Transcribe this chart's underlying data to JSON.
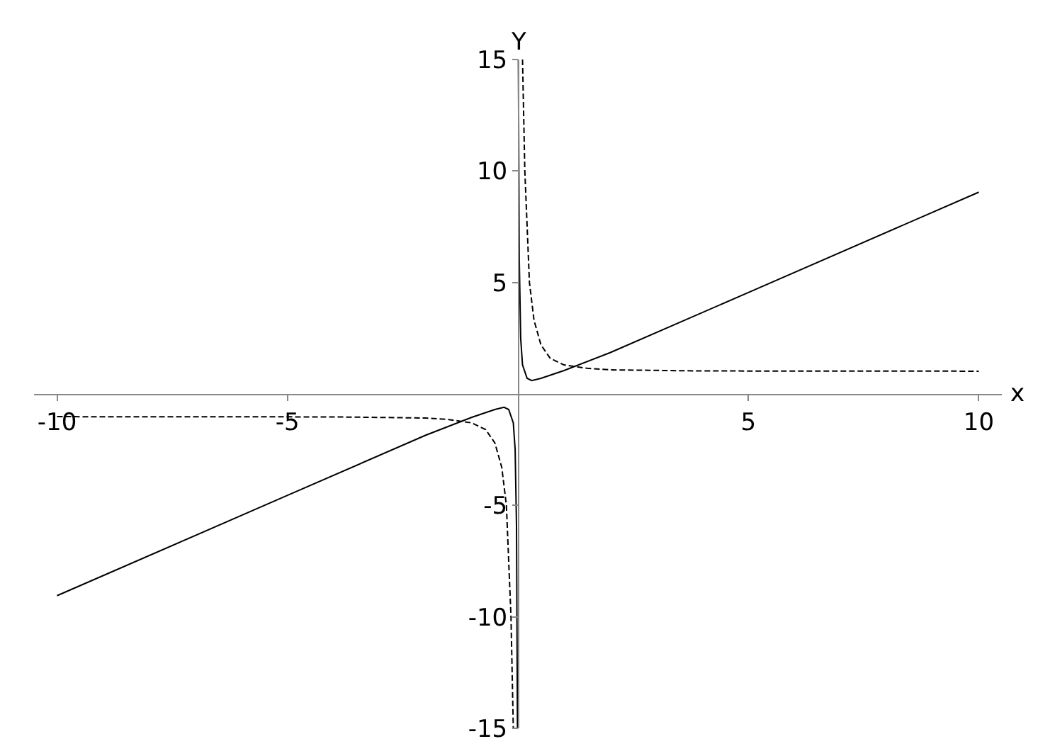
{
  "chart_data": {
    "type": "line",
    "xlabel": "x",
    "ylabel": "Y",
    "xlim": [
      -10.5,
      10.5
    ],
    "ylim": [
      -15,
      15
    ],
    "xticks": [
      -10,
      -5,
      5,
      10
    ],
    "yticks": [
      -15,
      -10,
      -5,
      5,
      10,
      15
    ],
    "grid": false,
    "marker": "none",
    "series": [
      {
        "color": "#000000",
        "line_style": "solid",
        "x": [
          -10,
          -5,
          -2,
          -1,
          -0.5,
          -0.3,
          -0.2,
          -0.1,
          -0.06,
          -0.03,
          -0.01,
          null,
          0.01,
          0.03,
          0.06,
          0.1,
          0.2,
          0.3,
          0.5,
          1,
          2,
          5,
          10
        ],
        "values": [
          -9.05,
          -4.55,
          -1.85,
          -1.05,
          -0.7,
          -0.6,
          -0.7,
          -1.3,
          -2.5,
          -6,
          -15,
          null,
          15,
          6,
          2.5,
          1.3,
          0.7,
          0.6,
          0.7,
          1.05,
          1.85,
          4.55,
          9.05
        ]
      },
      {
        "color": "#000000",
        "line_style": "dashed",
        "x": [
          -10,
          -4,
          -2,
          -1.5,
          -1,
          -0.7,
          -0.5,
          -0.35,
          -0.25,
          -0.15,
          -0.1,
          null,
          0.1,
          0.15,
          0.25,
          0.35,
          0.5,
          0.7,
          1,
          1.5,
          2,
          4,
          10
        ],
        "values": [
          -1.02,
          -1.03,
          -1.08,
          -1.15,
          -1.3,
          -1.6,
          -2.2,
          -3.3,
          -5,
          -10,
          -15,
          null,
          15,
          10,
          5,
          3.3,
          2.2,
          1.6,
          1.3,
          1.15,
          1.08,
          1.03,
          1.02
        ]
      }
    ]
  }
}
